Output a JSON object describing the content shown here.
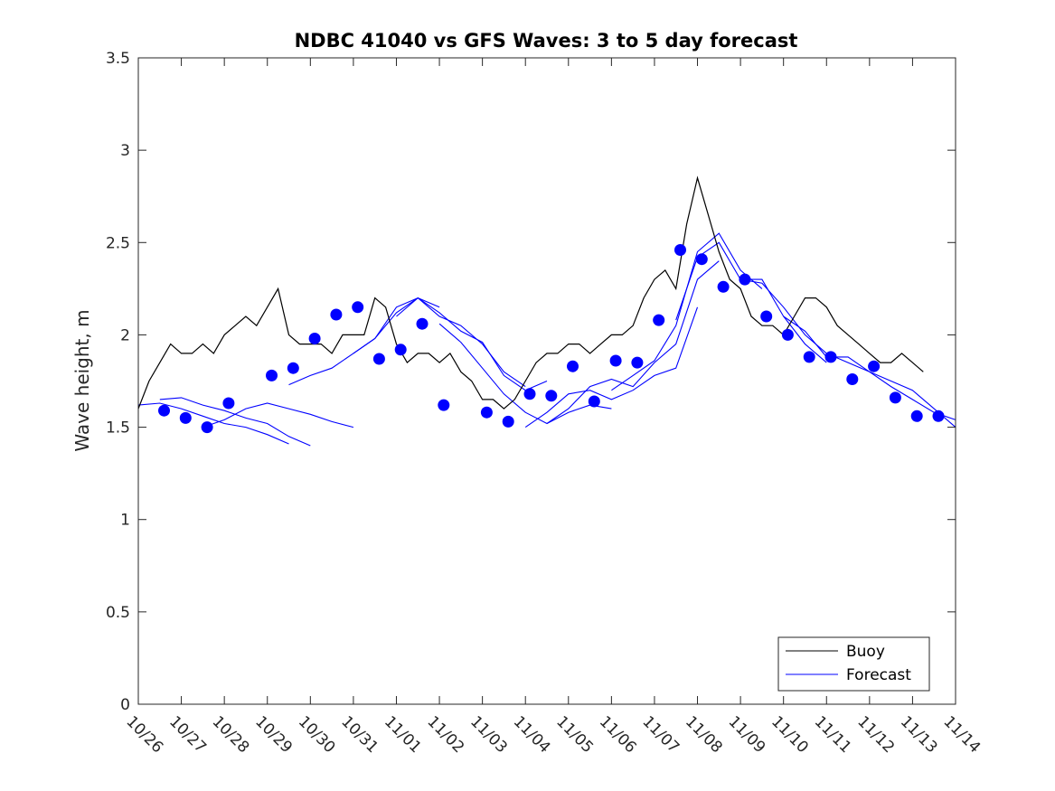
{
  "chart_data": {
    "type": "line",
    "title": "NDBC 41040 vs GFS Waves: 3 to 5 day forecast",
    "xlabel": "",
    "ylabel": "Wave height, m",
    "xlim": [
      0,
      19
    ],
    "ylim": [
      0,
      3.5
    ],
    "x_tick_labels": [
      "10/26",
      "10/27",
      "10/28",
      "10/29",
      "10/30",
      "10/31",
      "11/01",
      "11/02",
      "11/03",
      "11/04",
      "11/05",
      "11/06",
      "11/07",
      "11/08",
      "11/09",
      "11/10",
      "11/11",
      "11/12",
      "11/13",
      "11/14"
    ],
    "y_tick_labels": [
      "0",
      "0.5",
      "1",
      "1.5",
      "2",
      "2.5",
      "3",
      "3.5"
    ],
    "y_ticks": [
      0,
      0.5,
      1,
      1.5,
      2,
      2.5,
      3,
      3.5
    ],
    "legend": {
      "position": "bottom-right",
      "entries": [
        "Buoy",
        "Forecast"
      ]
    },
    "colors": {
      "buoy": "#000000",
      "forecast": "#0000ff",
      "markers": "#0000ff"
    },
    "buoy": {
      "name": "Buoy",
      "x": [
        0.0,
        0.25,
        0.5,
        0.75,
        1.0,
        1.25,
        1.5,
        1.75,
        2.0,
        2.25,
        2.5,
        2.75,
        3.0,
        3.25,
        3.5,
        3.75,
        4.0,
        4.25,
        4.5,
        4.75,
        5.0,
        5.25,
        5.5,
        5.75,
        6.0,
        6.25,
        6.5,
        6.75,
        7.0,
        7.25,
        7.5,
        7.75,
        8.0,
        8.25,
        8.5,
        8.75,
        9.0,
        9.25,
        9.5,
        9.75,
        10.0,
        10.25,
        10.5,
        10.75,
        11.0,
        11.25,
        11.5,
        11.75,
        12.0,
        12.25,
        12.5,
        12.75,
        13.0,
        13.25,
        13.5,
        13.75,
        14.0,
        14.25,
        14.5,
        14.75,
        15.0,
        15.25,
        15.5,
        15.75,
        16.0,
        16.25,
        16.5,
        16.75,
        17.0,
        17.25,
        17.5,
        17.75,
        18.0,
        18.25
      ],
      "values": [
        1.6,
        1.75,
        1.85,
        1.95,
        1.9,
        1.9,
        1.95,
        1.9,
        2.0,
        2.05,
        2.1,
        2.05,
        2.15,
        2.25,
        2.0,
        1.95,
        1.95,
        1.95,
        1.9,
        2.0,
        2.0,
        2.0,
        2.2,
        2.15,
        1.95,
        1.85,
        1.9,
        1.9,
        1.85,
        1.9,
        1.8,
        1.75,
        1.65,
        1.65,
        1.6,
        1.65,
        1.75,
        1.85,
        1.9,
        1.9,
        1.95,
        1.95,
        1.9,
        1.95,
        2.0,
        2.0,
        2.05,
        2.2,
        2.3,
        2.35,
        2.25,
        2.6,
        2.85,
        2.65,
        2.45,
        2.3,
        2.25,
        2.1,
        2.05,
        2.05,
        2.0,
        2.1,
        2.2,
        2.2,
        2.15,
        2.05,
        2.0,
        1.95,
        1.9,
        1.85,
        1.85,
        1.9,
        1.85,
        1.8
      ]
    },
    "forecast": [
      {
        "name": "Forecast",
        "x": [
          0.0,
          0.5,
          1.0,
          1.5,
          2.0,
          2.5,
          3.0,
          3.5
        ],
        "values": [
          1.62,
          1.63,
          1.6,
          1.56,
          1.52,
          1.5,
          1.46,
          1.41
        ]
      },
      {
        "name": "Forecast",
        "x": [
          0.5,
          1.0,
          1.5,
          2.0,
          2.5,
          3.0,
          3.5,
          4.0
        ],
        "values": [
          1.65,
          1.66,
          1.62,
          1.59,
          1.55,
          1.52,
          1.45,
          1.4
        ]
      },
      {
        "name": "Forecast",
        "x": [
          1.5,
          2.0,
          2.5,
          3.0,
          3.5,
          4.0,
          4.5,
          5.0
        ],
        "values": [
          1.5,
          1.54,
          1.6,
          1.63,
          1.6,
          1.57,
          1.53,
          1.5
        ]
      },
      {
        "name": "Forecast",
        "x": [
          3.5,
          4.0,
          4.5,
          5.0,
          5.5,
          6.0,
          6.5,
          7.0
        ],
        "values": [
          1.73,
          1.78,
          1.82,
          1.9,
          1.98,
          2.15,
          2.2,
          2.15
        ]
      },
      {
        "name": "Forecast",
        "x": [
          5.0,
          5.5,
          6.0,
          6.5,
          7.0,
          7.5,
          8.0,
          8.5,
          9.0
        ],
        "values": [
          1.9,
          1.98,
          2.12,
          2.2,
          2.1,
          2.05,
          1.95,
          1.8,
          1.72
        ]
      },
      {
        "name": "Forecast",
        "x": [
          6.0,
          6.5,
          7.0,
          7.5,
          8.0,
          8.5,
          9.0,
          9.5
        ],
        "values": [
          2.1,
          2.2,
          2.12,
          2.02,
          1.96,
          1.78,
          1.7,
          1.75
        ]
      },
      {
        "name": "Forecast",
        "x": [
          7.0,
          7.5,
          8.0,
          8.5,
          9.0,
          9.5,
          10.0,
          10.5,
          11.0
        ],
        "values": [
          2.06,
          1.96,
          1.82,
          1.68,
          1.58,
          1.52,
          1.58,
          1.62,
          1.6
        ]
      },
      {
        "name": "Forecast",
        "x": [
          9.0,
          9.5,
          10.0,
          10.5,
          11.0,
          11.5,
          12.0,
          12.5,
          13.0
        ],
        "values": [
          1.5,
          1.58,
          1.68,
          1.7,
          1.65,
          1.7,
          1.78,
          1.82,
          2.15
        ]
      },
      {
        "name": "Forecast",
        "x": [
          9.5,
          10.0,
          10.5,
          11.0,
          11.5,
          12.0,
          12.5,
          13.0,
          13.5
        ],
        "values": [
          1.52,
          1.6,
          1.72,
          1.76,
          1.72,
          1.85,
          1.95,
          2.3,
          2.4
        ]
      },
      {
        "name": "Forecast",
        "x": [
          11.0,
          11.5,
          12.0,
          12.5,
          13.0,
          13.5,
          14.0,
          14.5
        ],
        "values": [
          1.7,
          1.78,
          1.86,
          2.05,
          2.45,
          2.55,
          2.35,
          2.25
        ]
      },
      {
        "name": "Forecast",
        "x": [
          12.5,
          13.0,
          13.5,
          14.0,
          14.5,
          15.0,
          15.5,
          16.0
        ],
        "values": [
          2.08,
          2.42,
          2.5,
          2.3,
          2.3,
          2.1,
          1.95,
          1.85
        ]
      },
      {
        "name": "Forecast",
        "x": [
          14.0,
          14.5,
          15.0,
          15.5,
          16.0,
          16.5,
          17.0,
          17.5,
          18.0,
          18.5,
          19.0
        ],
        "values": [
          2.3,
          2.28,
          2.15,
          2.0,
          1.9,
          1.85,
          1.8,
          1.75,
          1.7,
          1.6,
          1.5
        ]
      },
      {
        "name": "Forecast",
        "x": [
          15.0,
          15.5,
          16.0,
          16.5,
          17.0,
          17.5,
          18.0,
          18.5,
          19.0
        ],
        "values": [
          2.1,
          2.02,
          1.88,
          1.88,
          1.8,
          1.72,
          1.65,
          1.58,
          1.54
        ]
      }
    ],
    "forecast_markers": {
      "x": [
        0.6,
        1.1,
        1.6,
        2.1,
        3.1,
        3.6,
        4.1,
        4.6,
        5.1,
        5.6,
        6.1,
        6.6,
        7.1,
        8.1,
        8.6,
        9.1,
        9.6,
        10.1,
        10.6,
        11.1,
        11.6,
        12.1,
        12.6,
        13.1,
        13.6,
        14.1,
        14.6,
        15.1,
        15.6,
        16.1,
        16.6,
        17.1,
        17.6,
        18.1,
        18.6
      ],
      "values": [
        1.59,
        1.55,
        1.5,
        1.63,
        1.78,
        1.82,
        1.98,
        2.11,
        2.15,
        1.87,
        1.92,
        2.06,
        1.62,
        1.58,
        1.53,
        1.68,
        1.67,
        1.83,
        1.64,
        1.86,
        1.85,
        2.08,
        2.46,
        2.41,
        2.26,
        2.3,
        2.1,
        2.0,
        1.88,
        1.88,
        1.76,
        1.83,
        1.66,
        1.56,
        1.56
      ]
    }
  }
}
